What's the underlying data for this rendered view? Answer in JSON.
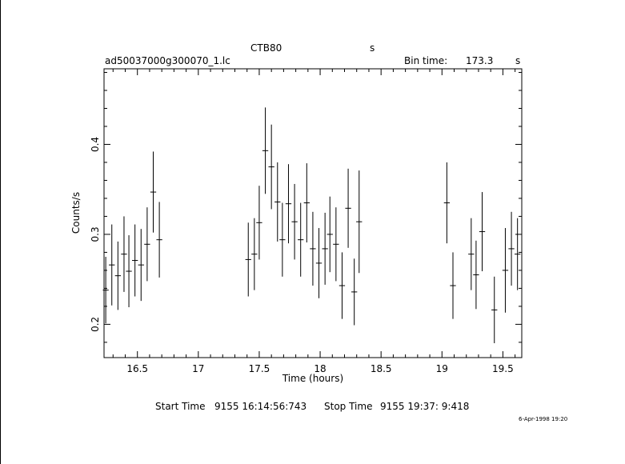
{
  "header": {
    "object": "CTB80",
    "object_unit": "s",
    "filename": "ad50037000g300070_1.lc",
    "bin_time_label": "Bin time:",
    "bin_time_value": "173.3",
    "bin_time_unit": "s"
  },
  "footer": {
    "start_label": "Start Time",
    "start_value": "9155 16:14:56:743",
    "stop_label": "Stop Time",
    "stop_value": "9155 19:37: 9:418",
    "date_stamp": "6-Apr-1998 19:20"
  },
  "chart_data": {
    "type": "scatter",
    "title": "CTB80",
    "xlabel": "Time (hours)",
    "ylabel": "Counts/s",
    "xlim": [
      16.226,
      19.655
    ],
    "ylim": [
      0.163,
      0.484
    ],
    "x_ticks": [
      16.5,
      17,
      17.5,
      18,
      18.5,
      19,
      19.5
    ],
    "x_tick_labels": [
      "16.5",
      "17",
      "17.5",
      "18",
      "18.5",
      "19",
      "19.5"
    ],
    "y_ticks": [
      0.2,
      0.3,
      0.4
    ],
    "y_tick_labels": [
      "0.2",
      "0.3",
      "0.4"
    ],
    "grid": false,
    "series": [
      {
        "x": [
          16.24,
          16.29,
          16.34,
          16.39,
          16.43,
          16.48,
          16.53,
          16.58,
          16.63,
          16.68,
          17.41,
          17.46,
          17.5,
          17.55,
          17.6,
          17.65,
          17.69,
          17.74,
          17.79,
          17.84,
          17.89,
          17.94,
          17.99,
          18.04,
          18.08,
          18.13,
          18.18,
          18.23,
          18.28,
          18.32,
          19.04,
          19.09,
          19.24,
          19.28,
          19.33,
          19.43,
          19.52,
          19.57,
          19.62
        ],
        "y": [
          0.238,
          0.266,
          0.254,
          0.278,
          0.259,
          0.271,
          0.266,
          0.289,
          0.347,
          0.294,
          0.272,
          0.278,
          0.313,
          0.393,
          0.375,
          0.336,
          0.294,
          0.334,
          0.314,
          0.294,
          0.335,
          0.284,
          0.268,
          0.284,
          0.3,
          0.289,
          0.243,
          0.329,
          0.236,
          0.314,
          0.335,
          0.243,
          0.278,
          0.255,
          0.303,
          0.216,
          0.26,
          0.284,
          0.278
        ],
        "yerr": [
          0.037,
          0.045,
          0.038,
          0.042,
          0.04,
          0.04,
          0.04,
          0.041,
          0.045,
          0.042,
          0.041,
          0.04,
          0.041,
          0.048,
          0.047,
          0.044,
          0.041,
          0.044,
          0.042,
          0.041,
          0.044,
          0.041,
          0.039,
          0.04,
          0.042,
          0.041,
          0.037,
          0.044,
          0.037,
          0.057,
          0.045,
          0.037,
          0.04,
          0.038,
          0.044,
          0.037,
          0.047,
          0.041,
          0.04
        ]
      }
    ]
  }
}
